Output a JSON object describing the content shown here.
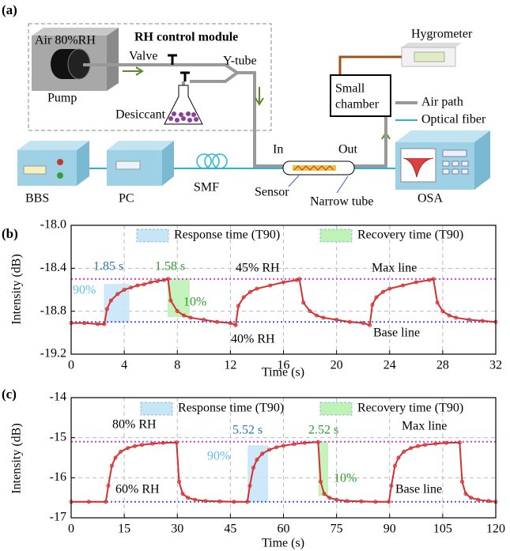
{
  "diagram": {
    "panel_label": "(a)",
    "tank": "Air 80%RH",
    "module": "RH control module",
    "pump": "Pump",
    "valve": "Valve",
    "y_tube": "Y-tube",
    "desiccant": "Desiccant",
    "hygrometer": "Hygrometer",
    "chamber": [
      "Small",
      "chamber"
    ],
    "legend": [
      "Air path",
      "Optical fiber"
    ],
    "in": "In",
    "out": "Out",
    "bbs": "BBS",
    "pc": "PC",
    "smf": "SMF",
    "sensor": "Sensor",
    "narrow_tube": "Narrow tube",
    "osa": "OSA"
  },
  "chart_data": [
    {
      "type": "line",
      "panel_label": "(b)",
      "xlabel": "Time (s)",
      "ylabel": "Intensity (dB)",
      "x": [
        0,
        1,
        2,
        2.5,
        2.7,
        3,
        3.5,
        4,
        4.5,
        5,
        5.5,
        6,
        6.5,
        7,
        7.3,
        7.5,
        8,
        8.5,
        9,
        10,
        11,
        12,
        12.4,
        12.6,
        13,
        13.5,
        14,
        15,
        16,
        17,
        17.2,
        17.5,
        18,
        18.5,
        19,
        20,
        21,
        22,
        22.5,
        22.7,
        23,
        23.5,
        24,
        25,
        26,
        27,
        27.3,
        27.6,
        28,
        28.5,
        29,
        30,
        31,
        32
      ],
      "series": [
        {
          "color": "#d62f2f",
          "values": [
            -18.91,
            -18.91,
            -18.92,
            -18.92,
            -18.78,
            -18.7,
            -18.64,
            -18.6,
            -18.58,
            -18.56,
            -18.55,
            -18.53,
            -18.52,
            -18.51,
            -18.5,
            -18.7,
            -18.8,
            -18.84,
            -18.86,
            -18.88,
            -18.9,
            -18.91,
            -18.93,
            -18.75,
            -18.67,
            -18.62,
            -18.59,
            -18.56,
            -18.53,
            -18.51,
            -18.5,
            -18.72,
            -18.8,
            -18.84,
            -18.86,
            -18.88,
            -18.9,
            -18.91,
            -18.93,
            -18.74,
            -18.67,
            -18.62,
            -18.59,
            -18.56,
            -18.53,
            -18.51,
            -18.5,
            -18.72,
            -18.8,
            -18.84,
            -18.86,
            -18.88,
            -18.89,
            -18.9
          ]
        }
      ],
      "xlim": [
        0,
        32
      ],
      "ylim": [
        -19.2,
        -18
      ],
      "xticks": [
        0,
        4,
        8,
        12,
        16,
        20,
        24,
        28,
        32
      ],
      "yticks": [
        {
          "value": -18,
          "label": "-18.0"
        },
        -18.4,
        -18.8,
        -19.2
      ],
      "grid": true,
      "regions": [
        {
          "name": "Response time (T90)",
          "color": "#c6e6f8",
          "x": [
            2.5,
            4.35
          ],
          "y": [
            -18.9,
            -18.55
          ]
        },
        {
          "name": "Recovery time (T90)",
          "color": "#bff2b6",
          "x": [
            7.3,
            8.9
          ],
          "y": [
            -18.85,
            -18.5
          ]
        }
      ],
      "hlines": [
        {
          "name": "Max line",
          "value": -18.5,
          "color": "#d43fd4"
        },
        {
          "name": "Base line",
          "value": -18.9,
          "color": "#4a5ad8"
        }
      ],
      "annotations": [
        {
          "text": "1.85 s",
          "color": "#2a78b4"
        },
        {
          "text": "1.58 s",
          "color": "#2e9a2e"
        },
        {
          "text": "90%",
          "color": "#5bc0eb"
        },
        {
          "text": "10%",
          "color": "#2e9a2e"
        },
        {
          "text": "45% RH",
          "color": "#000000"
        },
        {
          "text": "40% RH",
          "color": "#000000"
        }
      ]
    },
    {
      "type": "line",
      "panel_label": "(c)",
      "xlabel": "Time (s)",
      "ylabel": "Intensity (dB)",
      "x": [
        0,
        5,
        9.8,
        10.5,
        11.5,
        12.5,
        14,
        16,
        18,
        20,
        23,
        26,
        29.8,
        30.5,
        31.5,
        33,
        35,
        38,
        42,
        46,
        49.8,
        50.5,
        51.5,
        52.5,
        54,
        56,
        58,
        60,
        63,
        66,
        69.8,
        70.5,
        71.5,
        73,
        75,
        78,
        82,
        86,
        89.8,
        90.5,
        91.5,
        92.5,
        94,
        96,
        98,
        100,
        103,
        106,
        109.8,
        110.5,
        111.5,
        113,
        115,
        118,
        120
      ],
      "series": [
        {
          "color": "#d62f2f",
          "values": [
            -16.6,
            -16.6,
            -16.6,
            -16.2,
            -15.7,
            -15.5,
            -15.35,
            -15.26,
            -15.21,
            -15.18,
            -15.15,
            -15.13,
            -15.12,
            -16.1,
            -16.4,
            -16.5,
            -16.55,
            -16.58,
            -16.59,
            -16.6,
            -16.6,
            -16.2,
            -15.75,
            -15.55,
            -15.4,
            -15.3,
            -15.24,
            -15.2,
            -15.16,
            -15.13,
            -15.11,
            -16.1,
            -16.4,
            -16.5,
            -16.55,
            -16.58,
            -16.59,
            -16.6,
            -16.6,
            -16.2,
            -15.7,
            -15.5,
            -15.35,
            -15.26,
            -15.21,
            -15.18,
            -15.15,
            -15.13,
            -15.12,
            -16.1,
            -16.4,
            -16.5,
            -16.55,
            -16.58,
            -16.6
          ]
        }
      ],
      "xlim": [
        0,
        120
      ],
      "ylim": [
        -17,
        -14
      ],
      "xticks": [
        0,
        15,
        30,
        45,
        60,
        75,
        90,
        105,
        120
      ],
      "yticks": [
        -14,
        -15,
        -16,
        -17
      ],
      "grid": true,
      "regions": [
        {
          "name": "Response time (T90)",
          "color": "#c6e6f8",
          "x": [
            50,
            55.5
          ],
          "y": [
            -16.6,
            -15.2
          ]
        },
        {
          "name": "Recovery time (T90)",
          "color": "#bff2b6",
          "x": [
            70,
            72.5
          ],
          "y": [
            -16.45,
            -15.1
          ]
        }
      ],
      "hlines": [
        {
          "name": "Max line",
          "value": -15.1,
          "color": "#d43fd4"
        },
        {
          "name": "Base line",
          "value": -16.6,
          "color": "#4a5ad8"
        }
      ],
      "annotations": [
        {
          "text": "80% RH",
          "color": "#000000"
        },
        {
          "text": "60% RH",
          "color": "#000000"
        },
        {
          "text": "5.52 s",
          "color": "#2a78b4"
        },
        {
          "text": "2.52 s",
          "color": "#2e9a2e"
        },
        {
          "text": "90%",
          "color": "#5bc0eb"
        },
        {
          "text": "10%",
          "color": "#2e9a2e"
        }
      ]
    }
  ]
}
